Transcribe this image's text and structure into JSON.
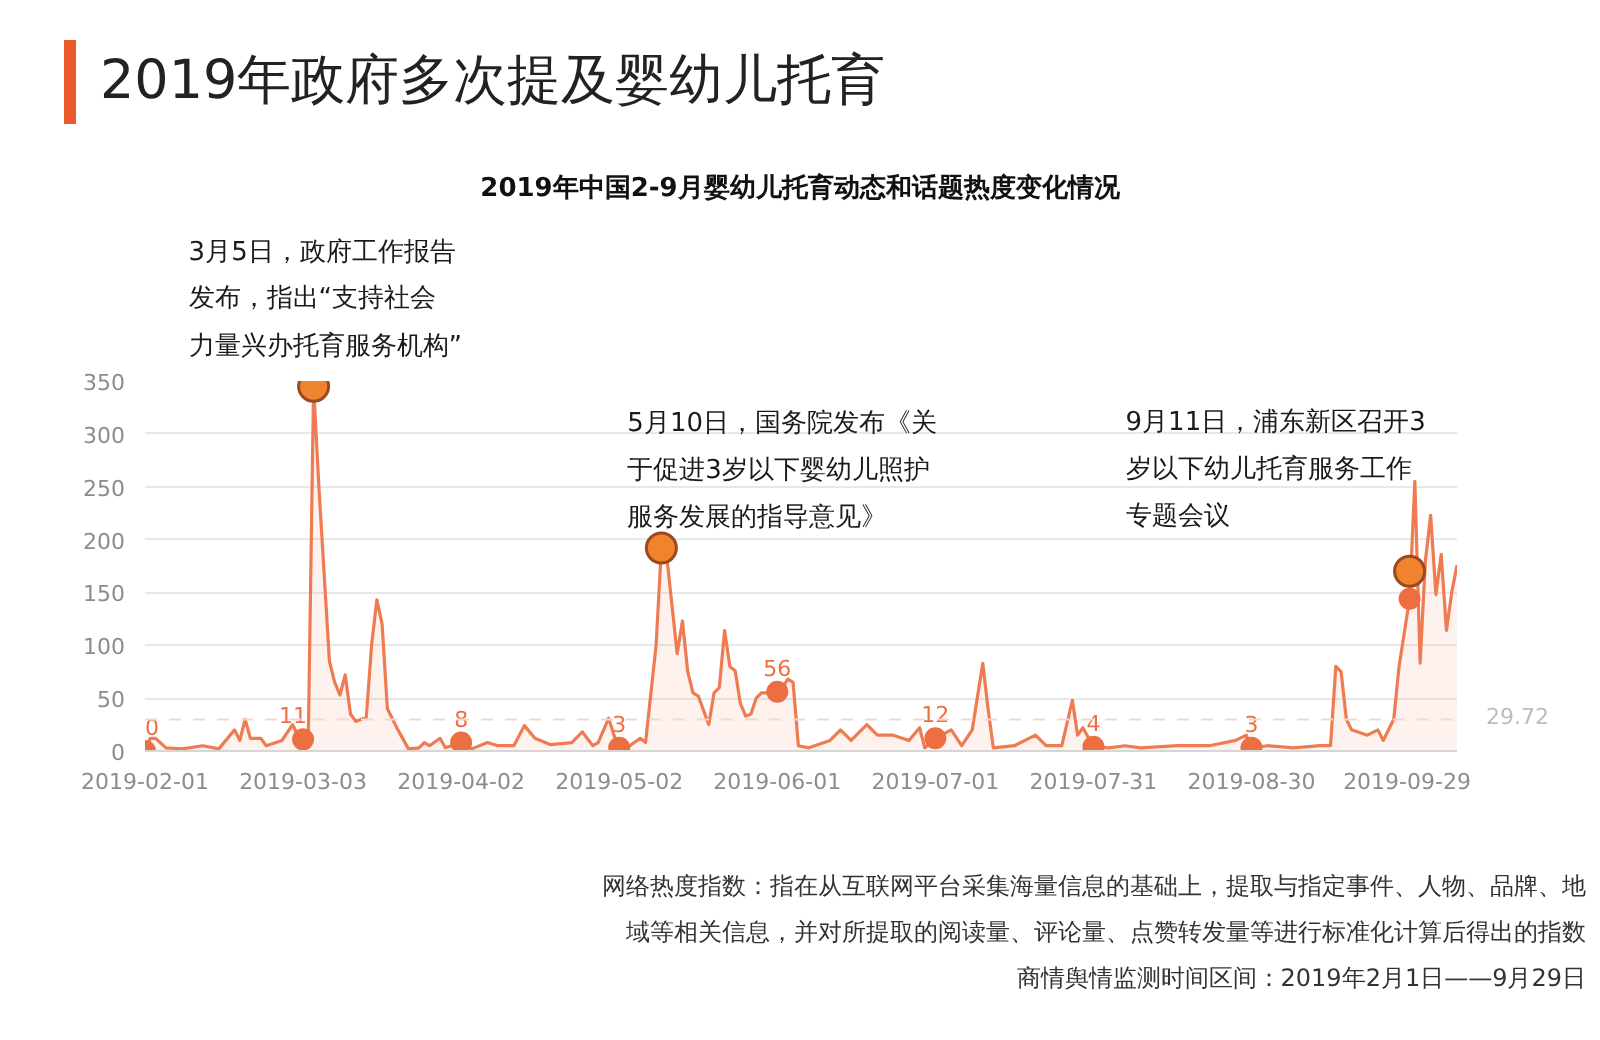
{
  "chart_data": {
    "type": "area",
    "title": "2019年政府多次提及婴幼儿托育",
    "subtitle": "2019年中国2-9月婴幼儿托育动态和话题热度变化情况",
    "xlim": [
      "2019-02-01",
      "2019-10-08"
    ],
    "xticks": [
      "2019-02-01",
      "2019-03-03",
      "2019-04-02",
      "2019-05-02",
      "2019-06-01",
      "2019-07-01",
      "2019-07-31",
      "2019-08-30",
      "2019-09-29"
    ],
    "ylim": [
      0,
      350
    ],
    "yticks": [
      0,
      50,
      100,
      150,
      200,
      250,
      300,
      350
    ],
    "grid": "y",
    "series": [
      {
        "color": "#ef7b52",
        "x": [
          "2019-02-01",
          "2019-02-02",
          "2019-02-03",
          "2019-02-05",
          "2019-02-08",
          "2019-02-12",
          "2019-02-15",
          "2019-02-18",
          "2019-02-19",
          "2019-02-20",
          "2019-02-21",
          "2019-02-23",
          "2019-02-24",
          "2019-02-27",
          "2019-03-01",
          "2019-03-02",
          "2019-03-03",
          "2019-03-04",
          "2019-03-05",
          "2019-03-06",
          "2019-03-08",
          "2019-03-09",
          "2019-03-10",
          "2019-03-11",
          "2019-03-12",
          "2019-03-13",
          "2019-03-15",
          "2019-03-16",
          "2019-03-17",
          "2019-03-18",
          "2019-03-19",
          "2019-03-20",
          "2019-03-21",
          "2019-03-23",
          "2019-03-25",
          "2019-03-26",
          "2019-03-27",
          "2019-03-29",
          "2019-03-30",
          "2019-04-02",
          "2019-04-04",
          "2019-04-07",
          "2019-04-09",
          "2019-04-12",
          "2019-04-14",
          "2019-04-16",
          "2019-04-19",
          "2019-04-23",
          "2019-04-25",
          "2019-04-27",
          "2019-04-28",
          "2019-04-30",
          "2019-05-01",
          "2019-05-02",
          "2019-05-04",
          "2019-05-06",
          "2019-05-07",
          "2019-05-09",
          "2019-05-10",
          "2019-05-11",
          "2019-05-13",
          "2019-05-14",
          "2019-05-15",
          "2019-05-16",
          "2019-05-17",
          "2019-05-19",
          "2019-05-20",
          "2019-05-21",
          "2019-05-22",
          "2019-05-23",
          "2019-05-24",
          "2019-05-25",
          "2019-05-26",
          "2019-05-27",
          "2019-05-28",
          "2019-05-29",
          "2019-05-30",
          "2019-06-01",
          "2019-06-02",
          "2019-06-03",
          "2019-06-04",
          "2019-06-05",
          "2019-06-07",
          "2019-06-11",
          "2019-06-13",
          "2019-06-15",
          "2019-06-18",
          "2019-06-20",
          "2019-06-23",
          "2019-06-26",
          "2019-06-28",
          "2019-06-29",
          "2019-07-01",
          "2019-07-04",
          "2019-07-06",
          "2019-07-08",
          "2019-07-10",
          "2019-07-11",
          "2019-07-12",
          "2019-07-16",
          "2019-07-20",
          "2019-07-22",
          "2019-07-25",
          "2019-07-27",
          "2019-07-28",
          "2019-07-29",
          "2019-07-31",
          "2019-08-03",
          "2019-08-06",
          "2019-08-09",
          "2019-08-16",
          "2019-08-22",
          "2019-08-27",
          "2019-08-29",
          "2019-08-30",
          "2019-09-02",
          "2019-09-07",
          "2019-09-12",
          "2019-09-14",
          "2019-09-15",
          "2019-09-16",
          "2019-09-17",
          "2019-09-18",
          "2019-09-21",
          "2019-09-23",
          "2019-09-24",
          "2019-09-26",
          "2019-09-27",
          "2019-09-29",
          "2019-09-30",
          "2019-10-01",
          "2019-10-02",
          "2019-10-03",
          "2019-10-04",
          "2019-10-05",
          "2019-10-06",
          "2019-10-07",
          "2019-10-08"
        ],
        "values": [
          0,
          12,
          12,
          3,
          2,
          5,
          2,
          20,
          10,
          30,
          12,
          12,
          5,
          10,
          25,
          15,
          11,
          15,
          345,
          250,
          85,
          65,
          53,
          72,
          35,
          28,
          32,
          100,
          143,
          120,
          40,
          30,
          20,
          2,
          3,
          8,
          5,
          12,
          3,
          8,
          2,
          8,
          5,
          5,
          24,
          12,
          6,
          8,
          18,
          5,
          8,
          31,
          15,
          3,
          5,
          12,
          8,
          100,
          192,
          185,
          92,
          123,
          75,
          55,
          52,
          25,
          55,
          60,
          114,
          80,
          76,
          45,
          33,
          35,
          50,
          55,
          55,
          56,
          60,
          68,
          65,
          5,
          3,
          10,
          20,
          10,
          25,
          15,
          15,
          10,
          22,
          3,
          12,
          20,
          5,
          20,
          83,
          40,
          3,
          5,
          15,
          5,
          5,
          48,
          15,
          22,
          4,
          3,
          5,
          3,
          5,
          5,
          10,
          15,
          3,
          5,
          3,
          5,
          5,
          80,
          75,
          30,
          20,
          15,
          20,
          10,
          30,
          80,
          144,
          255,
          83,
          180,
          223,
          148,
          186,
          114,
          150,
          176
        ]
      },
      {
        "type": "scatter",
        "marker": "circle",
        "color": "#ec6f41",
        "x": [
          "2019-02-01",
          "2019-03-03",
          "2019-04-02",
          "2019-05-02",
          "2019-06-01",
          "2019-07-01",
          "2019-07-31",
          "2019-08-30",
          "2019-09-29"
        ],
        "values": [
          0,
          11,
          8,
          3,
          56,
          12,
          4,
          3,
          144
        ],
        "value_labels": [
          "0",
          "11",
          "8",
          "3",
          "56",
          "12",
          "4",
          "3",
          null
        ]
      },
      {
        "type": "scatter",
        "marker": "circle",
        "color": "#f0832e",
        "x": [
          "2019-03-05",
          "2019-05-10",
          "2019-09-29"
        ],
        "values": [
          345,
          192,
          170
        ]
      }
    ],
    "ref_lines": [
      {
        "axis": "y",
        "value": 29.72,
        "label": "29.72",
        "color": "#f6d8ca",
        "line_style": "dashed"
      }
    ],
    "annotations": [
      {
        "text": "3月5日，政府工作报告发布，指出“支持社会力量兴办托育服务机构”",
        "x": "2019-03-05",
        "y": 345
      },
      {
        "text": "5月10日，国务院发布《关于促进3岁以下婴幼儿照护服务发展的指导意见》",
        "x": "2019-05-10",
        "y": 192
      },
      {
        "text": "9月11日，浦东新区召开3岁以下幼儿托育服务工作专题会议",
        "x": "2019-09-29",
        "y": 170
      },
      "网络热度指数：指在从互联网平台采集海量信息的基础上，提取与指定事件、人物、品牌、地域等相关信息，并对所提取的阅读量、评论量、点赞转发量等进行标准化计算后得出的指数",
      "商情舆情监测时间区间：2019年2月1日——9月29日"
    ]
  }
}
